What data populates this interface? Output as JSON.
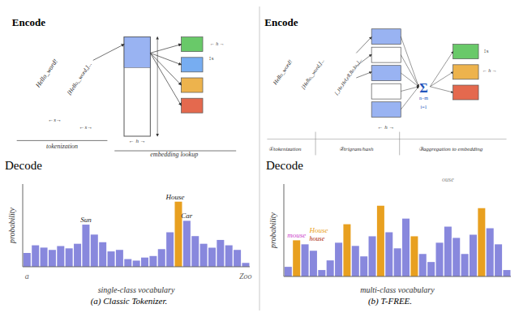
{
  "chart_data": [
    {
      "type": "diagram",
      "title": "Encode",
      "annotations": [
        {
          "text": "Hello_word!"
        },
        {
          "text": "[Hello,_word,]..."
        },
        {
          "text": "←s→"
        },
        {
          "text": "←s→"
        },
        {
          "text": "← h →"
        },
        {
          "text": "← h →"
        },
        {
          "text": "↕s"
        },
        {
          "text": "tokenization"
        },
        {
          "text": "embedding lookup"
        }
      ]
    },
    {
      "type": "diagram",
      "title": "Encode",
      "annotations": [
        {
          "text": "Hello_word!"
        },
        {
          "text": "[Hello,_word,]..."
        },
        {
          "text": "[_He,Hel,ell,llo,lo_]..."
        },
        {
          "text": "← h →"
        },
        {
          "text": "Σ"
        },
        {
          "text": "i=1"
        },
        {
          "text": "n−m"
        },
        {
          "text": "↕s"
        },
        {
          "text": "← h →"
        },
        {
          "text": "①tokenization"
        },
        {
          "text": "②trigram/hash"
        },
        {
          "text": "③aggregation to embedding"
        }
      ]
    },
    {
      "type": "bar",
      "title": "Decode",
      "subtitle": "(a) Classic Tokenizer.",
      "x_label": "single-class vocabulary",
      "y_label": "probability",
      "categories": [
        "a",
        null,
        null,
        null,
        null,
        null,
        null,
        null,
        null,
        null,
        null,
        null,
        null,
        null,
        null,
        null,
        null,
        null,
        null,
        null,
        null,
        null,
        null,
        null,
        null,
        null,
        "Zoo"
      ],
      "values": [
        0.18,
        0.28,
        0.25,
        0.22,
        0.27,
        0.24,
        0.3,
        0.55,
        0.42,
        0.32,
        0.2,
        0.22,
        0.1,
        0.08,
        0.12,
        0.14,
        0.23,
        0.45,
        0.85,
        0.6,
        0.4,
        0.3,
        0.25,
        0.35,
        0.28,
        0.22,
        0.05
      ],
      "colors": [
        "#8888dd",
        "#8888dd",
        "#8888dd",
        "#8888dd",
        "#8888dd",
        "#8888dd",
        "#8888dd",
        "#8888dd",
        "#8888dd",
        "#8888dd",
        "#8888dd",
        "#8888dd",
        "#8888dd",
        "#8888dd",
        "#8888dd",
        "#8888dd",
        "#8888dd",
        "#8888dd",
        "#e8a020",
        "#8888dd",
        "#8888dd",
        "#8888dd",
        "#8888dd",
        "#8888dd",
        "#8888dd",
        "#8888dd",
        "#8888dd"
      ],
      "ylim": [
        0,
        1.08
      ],
      "tick_labels": "x",
      "annotations": [
        {
          "text": "Sun"
        },
        {
          "text": "House"
        },
        {
          "text": "Car"
        }
      ]
    },
    {
      "type": "bar",
      "title": "Decode",
      "subtitle": "(b) T-FREE.",
      "x_label": "multi-class vocabulary",
      "y_label": "probability",
      "categories": [
        null,
        null,
        null,
        null,
        null,
        null,
        null,
        null,
        null,
        null,
        null,
        null,
        null,
        null,
        null,
        null,
        null,
        null,
        null,
        null,
        null,
        null,
        null,
        null,
        null,
        null,
        null
      ],
      "values": [
        0.12,
        0.45,
        0.4,
        0.32,
        0.08,
        0.2,
        0.42,
        0.65,
        0.38,
        0.25,
        0.5,
        0.88,
        0.55,
        0.35,
        0.72,
        0.5,
        0.28,
        0.18,
        0.42,
        0.62,
        0.48,
        0.28,
        0.52,
        0.85,
        0.6,
        0.4,
        0.08
      ],
      "colors": [
        "#8888dd",
        "#e8a020",
        "#8888dd",
        "#8888dd",
        "#8888dd",
        "#8888dd",
        "#8888dd",
        "#e8a020",
        "#8888dd",
        "#8888dd",
        "#8888dd",
        "#e8a020",
        "#8888dd",
        "#8888dd",
        "#8888dd",
        "#e8a020",
        "#8888dd",
        "#8888dd",
        "#8888dd",
        "#8888dd",
        "#8888dd",
        "#8888dd",
        "#8888dd",
        "#e8a020",
        "#8888dd",
        "#8888dd",
        "#8888dd"
      ],
      "ylim": [
        0,
        1.15
      ],
      "tick_labels": false,
      "annotations": [
        {
          "text": "mouse",
          "color": "#cc44cc"
        },
        {
          "text": "House",
          "color": "#e8a020"
        },
        {
          "text": "house",
          "color": "#aa2200"
        },
        {
          "text": "ouse",
          "color": "#888888"
        }
      ]
    }
  ]
}
